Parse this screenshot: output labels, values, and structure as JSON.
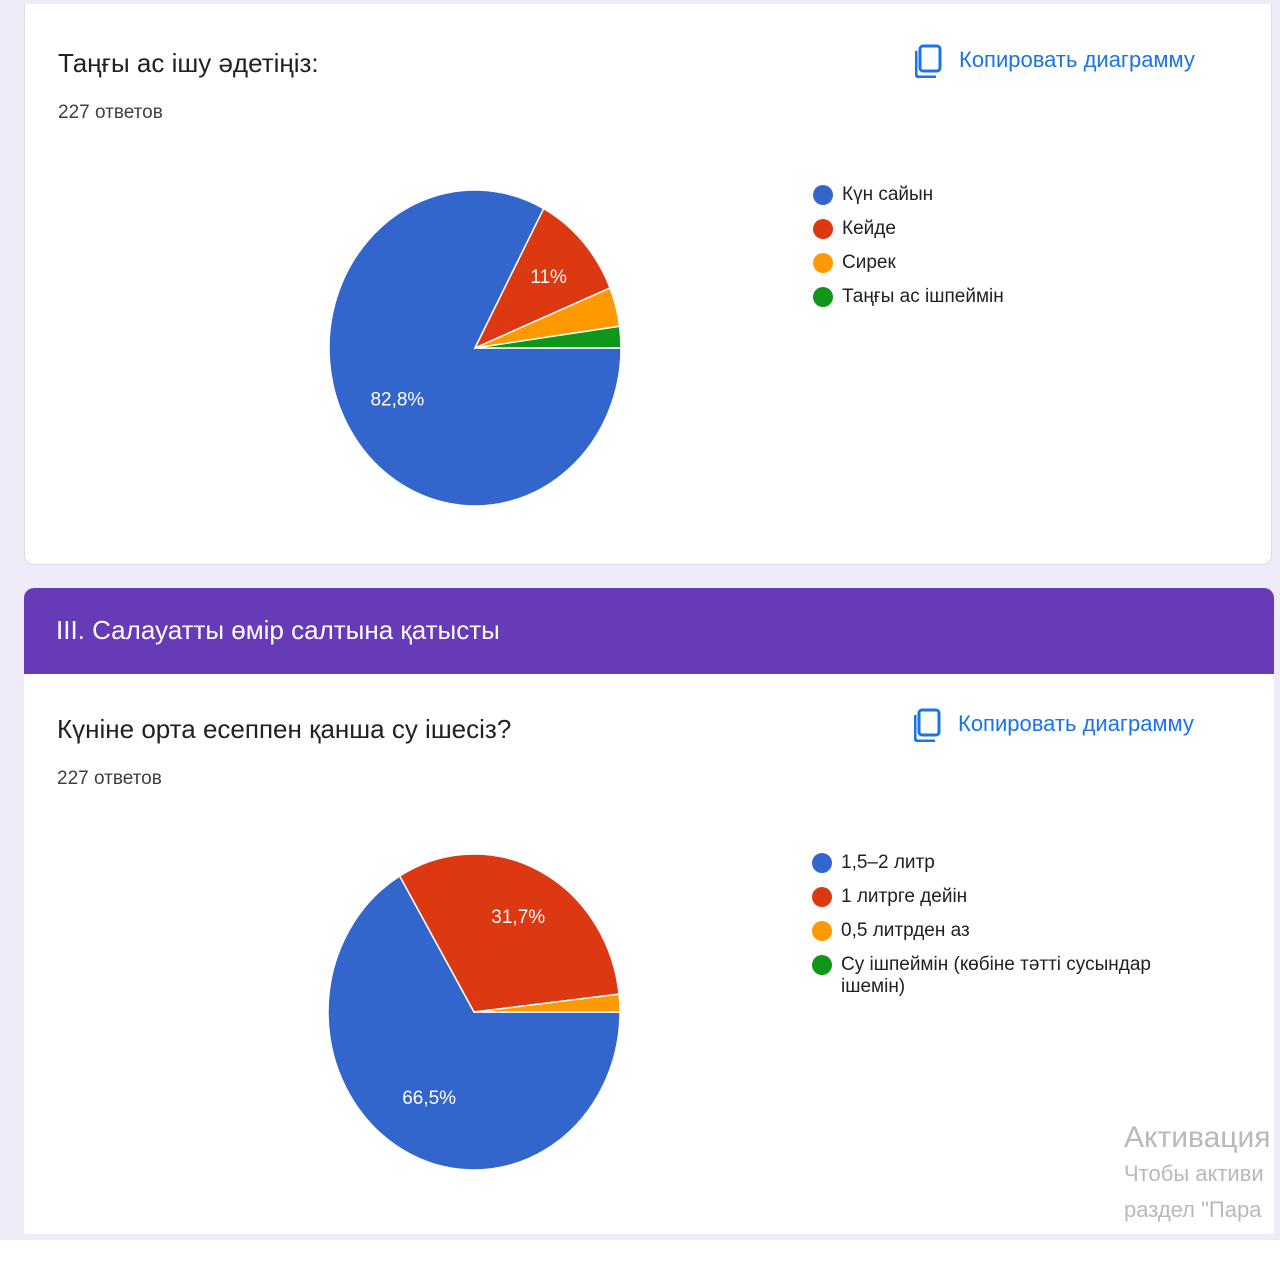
{
  "colors": {
    "blue": "#3366cc",
    "red": "#dc3912",
    "orange": "#ff9900",
    "green": "#109618",
    "purple": "#673ab7",
    "link": "#1a73e8"
  },
  "question1": {
    "title": "Таңғы ас ішу әдетіңіз:",
    "responses": "227 ответов",
    "copy_label": "Копировать диаграмму",
    "copy_icon": "copy-icon",
    "legend": [
      "Күн сайын",
      "Кейде",
      "Сирек",
      "Таңғы ас ішпеймін"
    ],
    "pie_labels": [
      "82,8%",
      "11%"
    ]
  },
  "section": {
    "title": "III. Салауатты өмір салтына қатысты"
  },
  "question2": {
    "title": "Күніне орта есеппен қанша су ішесіз?",
    "responses": "227 ответов",
    "copy_label": "Копировать диаграмму",
    "copy_icon": "copy-icon",
    "legend": [
      "1,5–2 литр",
      "1 литрге дейін",
      "0,5 литрден аз",
      "Су ішпеймін (көбіне тәтті сусындар ішемін)"
    ],
    "pie_labels": [
      "66,5%",
      "31,7%"
    ]
  },
  "watermark": {
    "title": "Активация",
    "line1": "Чтобы активи",
    "line2": "раздел \"Пара"
  },
  "chart_data": [
    {
      "type": "pie",
      "title": "Таңғы ас ішу әдетіңіз:",
      "categories": [
        "Күн сайын",
        "Кейде",
        "Сирек",
        "Таңғы ас ішпеймін"
      ],
      "values": [
        82.8,
        11.0,
        4.0,
        2.2
      ],
      "labels": [
        "82,8%",
        "11%",
        "",
        ""
      ],
      "colors": [
        "#3366cc",
        "#dc3912",
        "#ff9900",
        "#109618"
      ],
      "legend": "right"
    },
    {
      "type": "pie",
      "title": "Күніне орта есеппен қанша су ішесіз?",
      "categories": [
        "1,5–2 литр",
        "1 литрге дейін",
        "0,5 литрден аз",
        "Су ішпеймін (көбіне тәтті сусындар ішемін)"
      ],
      "values": [
        66.5,
        31.7,
        1.8,
        0.0
      ],
      "labels": [
        "66,5%",
        "31,7%",
        "",
        ""
      ],
      "colors": [
        "#3366cc",
        "#dc3912",
        "#ff9900",
        "#109618"
      ],
      "legend": "right"
    }
  ]
}
